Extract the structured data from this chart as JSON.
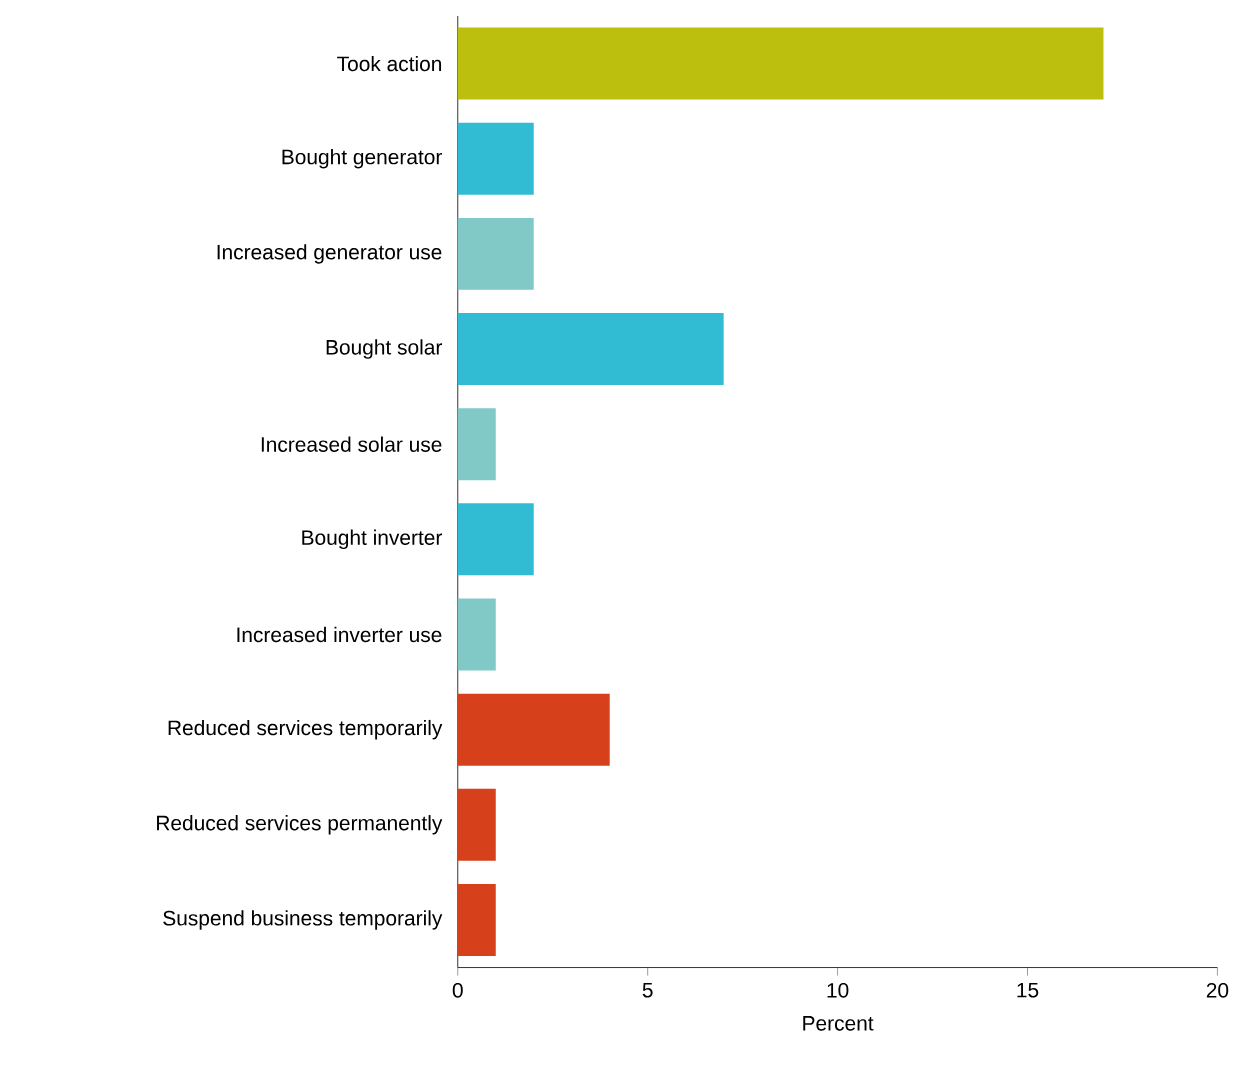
{
  "chart_data": {
    "type": "bar",
    "orientation": "horizontal",
    "categories": [
      "Took action",
      "Bought generator",
      "Increased generator use",
      "Bought solar",
      "Increased solar use",
      "Bought inverter",
      "Increased inverter use",
      "Reduced services temporarily",
      "Reduced services permanently",
      "Suspend business temporarily"
    ],
    "values": [
      17,
      2,
      2,
      7,
      1,
      2,
      1,
      4,
      1,
      1
    ],
    "colors": [
      "#bcbf0e",
      "#32bcd4",
      "#80c9c6",
      "#32bcd4",
      "#80c9c6",
      "#32bcd4",
      "#80c9c6",
      "#d6401a",
      "#d6401a",
      "#d6401a"
    ],
    "xlim": [
      0,
      20
    ],
    "xticks": [
      0,
      5,
      10,
      15,
      20
    ],
    "xlabel": "Percent"
  }
}
